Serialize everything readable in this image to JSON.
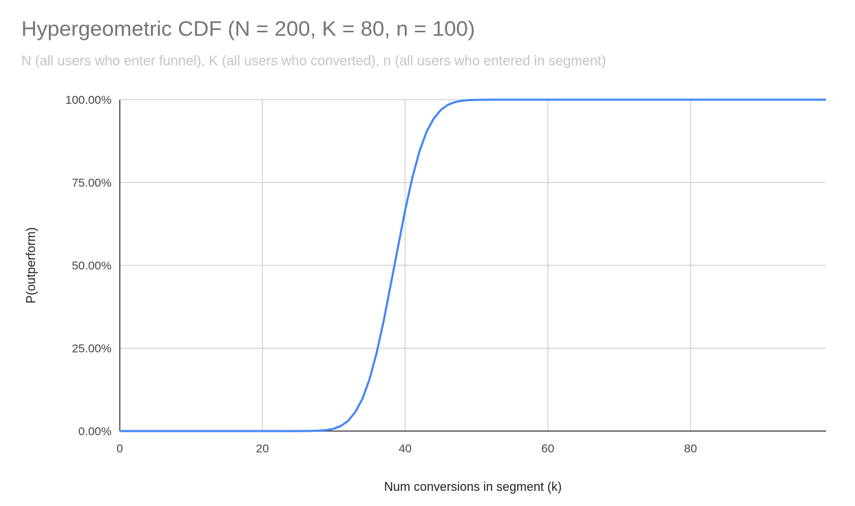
{
  "chart_data": {
    "type": "line",
    "title": "Hypergeometric CDF (N = 200, K = 80, n = 100)",
    "subtitle": "N (all users who enter funnel), K (all users who converted), n (all users who entered in segment)",
    "xlabel": "Num conversions in segment (k)",
    "ylabel": "P(outperform)",
    "xlim": [
      0,
      99
    ],
    "ylim": [
      0,
      1
    ],
    "x_ticks": [
      0,
      20,
      40,
      60,
      80
    ],
    "x_tick_labels": [
      "0",
      "20",
      "40",
      "60",
      "80"
    ],
    "y_ticks": [
      0,
      0.25,
      0.5,
      0.75,
      1
    ],
    "y_tick_labels": [
      "0.00%",
      "25.00%",
      "50.00%",
      "75.00%",
      "100.00%"
    ],
    "grid": true,
    "legend": "none",
    "line_color": "#4285f4",
    "x_start": 0,
    "values": [
      0,
      0,
      0,
      0,
      0,
      0,
      0,
      0,
      0,
      0,
      0,
      0,
      0,
      0,
      0,
      0,
      0,
      0,
      0,
      0,
      0,
      0,
      0,
      0,
      0,
      0,
      0.0002,
      0.0005,
      0.0013,
      0.0031,
      0.0071,
      0.0154,
      0.0307,
      0.0571,
      0.0968,
      0.1562,
      0.2358,
      0.3336,
      0.4443,
      0.5557,
      0.6664,
      0.7642,
      0.8438,
      0.9032,
      0.9429,
      0.9693,
      0.9846,
      0.9929,
      0.9969,
      0.9987,
      0.9995,
      0.9998,
      1,
      1,
      1,
      1,
      1,
      1,
      1,
      1,
      1,
      1,
      1,
      1,
      1,
      1,
      1,
      1,
      1,
      1,
      1,
      1,
      1,
      1,
      1,
      1,
      1,
      1,
      1,
      1,
      1,
      1,
      1,
      1,
      1,
      1,
      1,
      1,
      1,
      1,
      1,
      1,
      1,
      1,
      1,
      1,
      1,
      1,
      1,
      1
    ]
  }
}
